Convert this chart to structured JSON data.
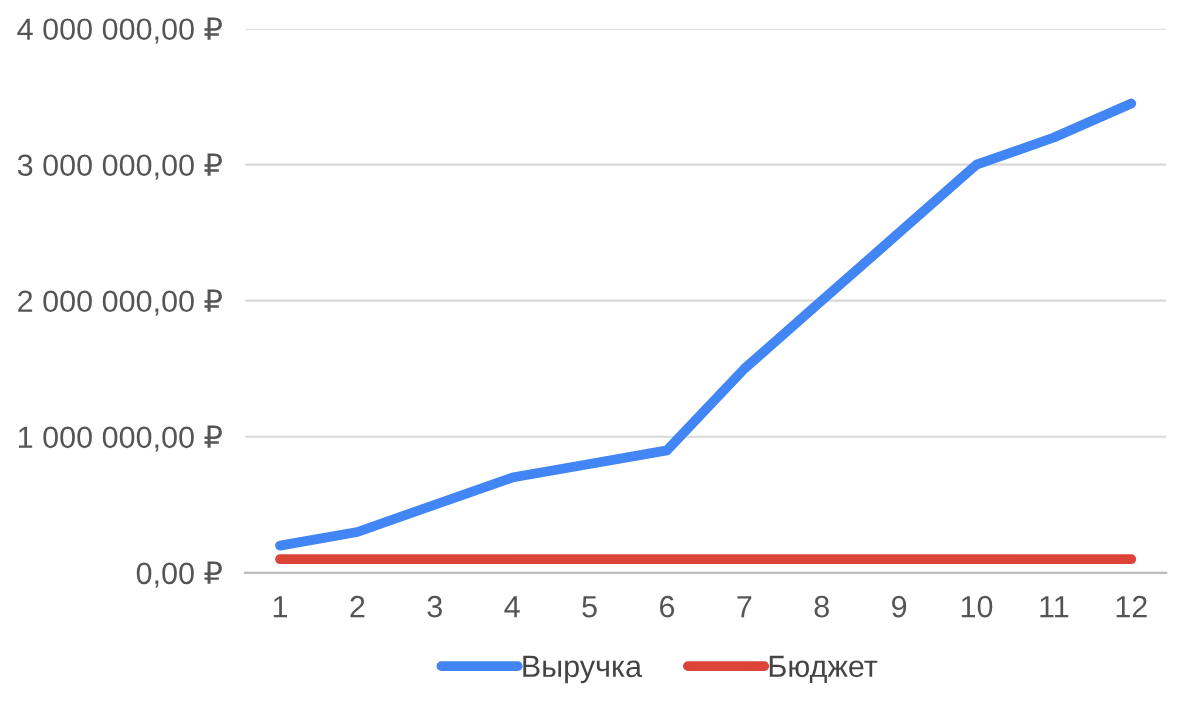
{
  "chart_data": {
    "type": "line",
    "categories": [
      "1",
      "2",
      "3",
      "4",
      "5",
      "6",
      "7",
      "8",
      "9",
      "10",
      "11",
      "12"
    ],
    "series": [
      {
        "name": "Выручка",
        "color": "#4285f4",
        "values": [
          200000,
          300000,
          500000,
          700000,
          800000,
          900000,
          1500000,
          2000000,
          2500000,
          3000000,
          3200000,
          3450000
        ]
      },
      {
        "name": "Бюджет",
        "color": "#db4437",
        "values": [
          100000,
          100000,
          100000,
          100000,
          100000,
          100000,
          100000,
          100000,
          100000,
          100000,
          100000,
          100000
        ]
      }
    ],
    "ylim": [
      0,
      4000000
    ],
    "yticks": [
      {
        "value": 0,
        "label": "0,00 ₽"
      },
      {
        "value": 1000000,
        "label": "1 000 000,00 ₽"
      },
      {
        "value": 2000000,
        "label": "2 000 000,00 ₽"
      },
      {
        "value": 3000000,
        "label": "3 000 000,00 ₽"
      },
      {
        "value": 4000000,
        "label": "4 000 000,00 ₽"
      }
    ],
    "grid": "y",
    "legend": "bottom",
    "marker": "none",
    "line_style": "solid"
  }
}
